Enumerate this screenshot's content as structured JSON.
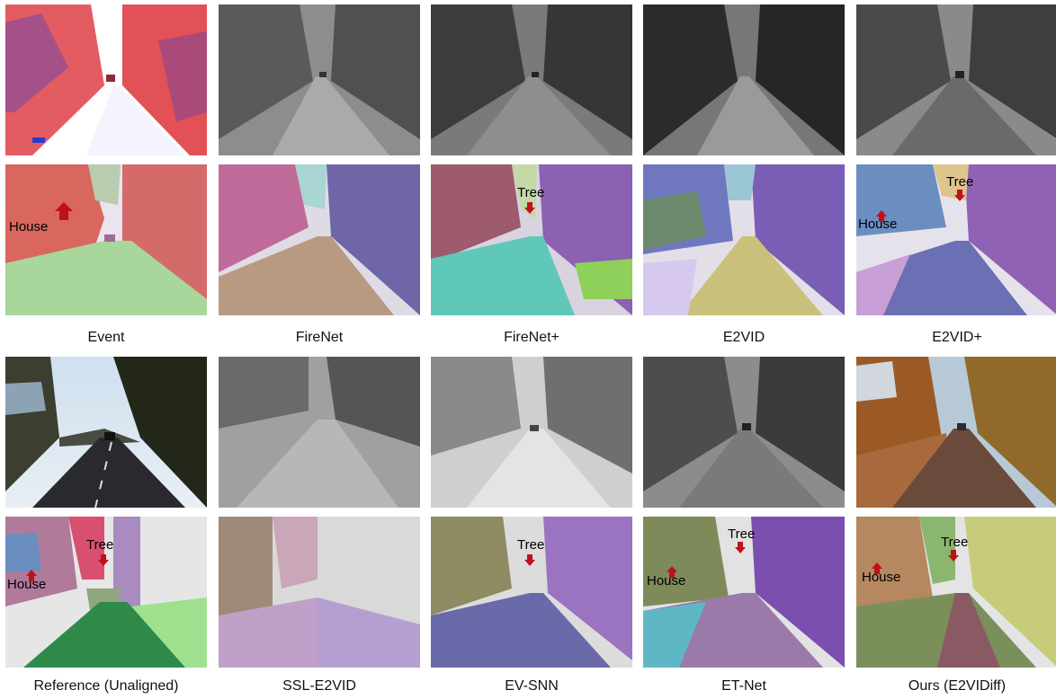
{
  "captions": [
    "Event",
    "FireNet",
    "FireNet+",
    "E2VID",
    "E2VID+",
    "Reference (Unaligned)",
    "SSL-E2VID",
    "EV-SNN",
    "ET-Net",
    "Ours (E2VIDiff)"
  ],
  "annotations": {
    "house": "House",
    "tree": "Tree"
  },
  "colors": {
    "event_red": "#d9262c",
    "event_blue": "#2a3bd0",
    "arrow_red": "#c0101a",
    "seg_green": "#a9d69a",
    "seg_purple": "#7b5bb3",
    "seg_pink": "#c06a9a",
    "seg_road_tan": "#b89a82",
    "seg_cyan": "#5fc8b8",
    "seg_lavender": "#b9a6d9"
  },
  "tile_kinds": [
    "event",
    "gray-blur",
    "gray-textured",
    "gray-dark",
    "gray-textured",
    "seg-event",
    "seg-firenet",
    "seg-firenetplus",
    "seg-e2vid",
    "seg-e2vidplus",
    "rgb-photo",
    "gray-very-blur",
    "gray-light",
    "gray-textured",
    "rgb-warm",
    "seg-reference",
    "seg-ssl",
    "seg-evsnn",
    "seg-etnet",
    "seg-ours"
  ]
}
